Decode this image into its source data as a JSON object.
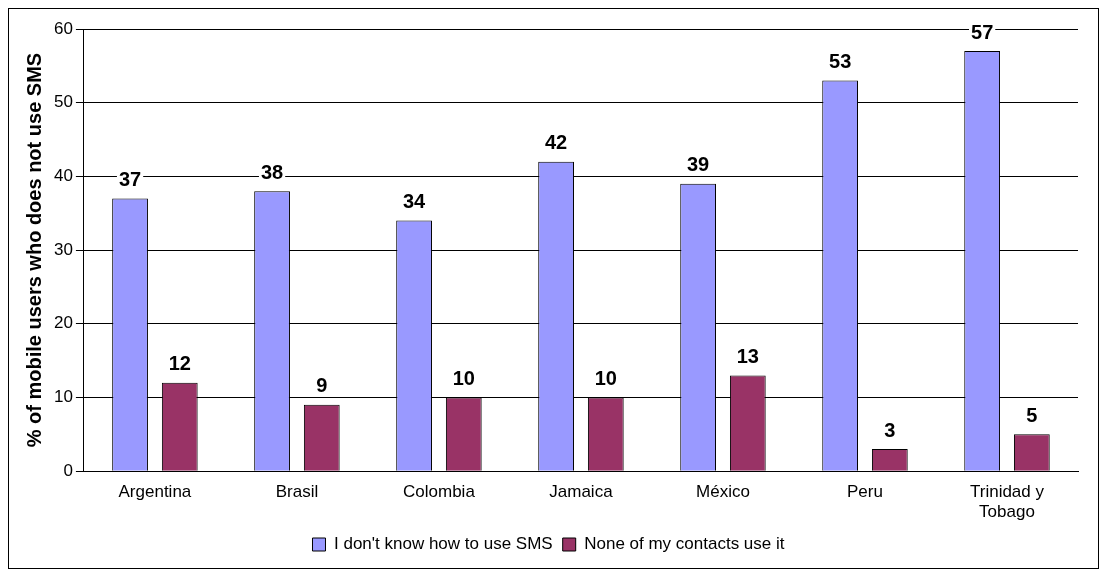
{
  "chart_data": {
    "type": "bar",
    "ylabel": "% of mobile users who does not use SMS",
    "categories": [
      "Argentina",
      "Brasil",
      "Colombia",
      "Jamaica",
      "México",
      "Peru",
      "Trinidad y Tobago"
    ],
    "series": [
      {
        "name": "I don't know how to use SMS",
        "color": "#9999ff",
        "values": [
          37,
          38,
          34,
          42,
          39,
          53,
          57
        ]
      },
      {
        "name": "None of my contacts use it",
        "color": "#993366",
        "values": [
          12,
          9,
          10,
          10,
          13,
          3,
          5
        ]
      }
    ],
    "ylim": [
      0,
      60
    ],
    "yticks": [
      0,
      10,
      20,
      30,
      40,
      50,
      60
    ],
    "grid": "y",
    "legend": "bottom",
    "data_labels": true
  }
}
